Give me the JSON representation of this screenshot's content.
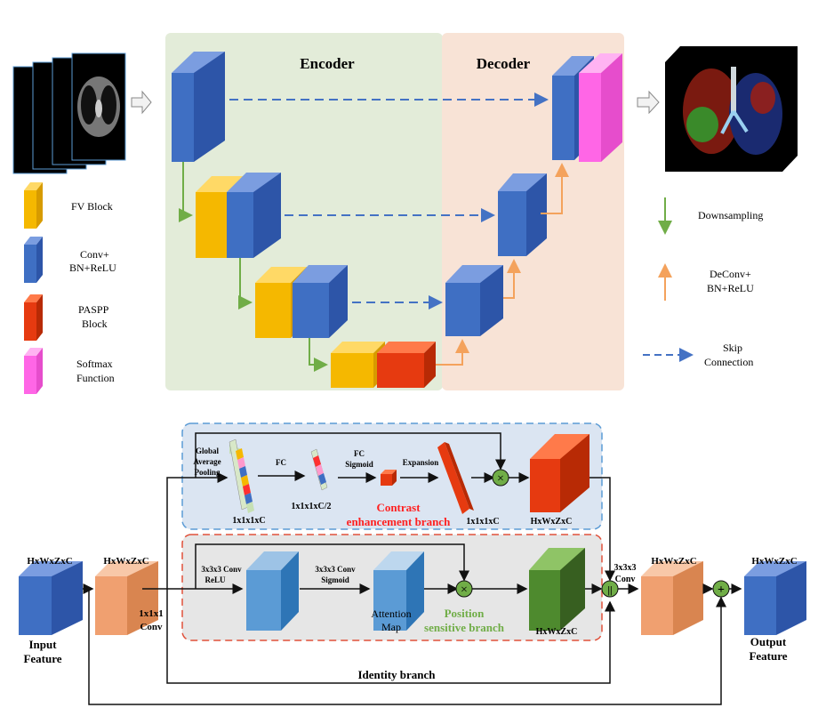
{
  "top": {
    "encoder_title": "Encoder",
    "decoder_title": "Decoder",
    "legend_left": [
      {
        "label": "FV Block",
        "color": "#f5b800"
      },
      {
        "label_lines": [
          "Conv+",
          "BN+ReLU"
        ],
        "color": "#3f6fc3"
      },
      {
        "label_lines": [
          "PASPP",
          "Block"
        ],
        "color": "#e63a10"
      },
      {
        "label_lines": [
          "Softmax",
          "Function"
        ],
        "color": "#ff66e6"
      }
    ],
    "legend_right": {
      "downsampling": "Downsampling",
      "deconv": [
        "DeConv+",
        "BN+ReLU"
      ],
      "skip": [
        "Skip",
        "Connection"
      ]
    }
  },
  "bottom": {
    "input_dim": "HxWxZxC",
    "input_label": [
      "Input",
      "Feature"
    ],
    "conv1_dim": "HxWxZxC",
    "conv1_label": [
      "1x1x1",
      "Conv"
    ],
    "contrast": {
      "gap_label": [
        "Global",
        "Average",
        "Pooling"
      ],
      "vec1_label": "1x1x1xC",
      "fc_label": "FC",
      "vec2_label": "1x1x1xC/2",
      "fc_sig_label": [
        "FC",
        "Sigmoid"
      ],
      "expansion_label": "Expansion",
      "vec3_label": "1x1x1xC",
      "branch_name": [
        "Contrast",
        "enhancement branch"
      ],
      "out_dim": "HxWxZxC"
    },
    "position": {
      "conv_relu": [
        "3x3x3 Conv",
        "ReLU"
      ],
      "conv_sig": [
        "3x3x3 Conv",
        "Sigmoid"
      ],
      "att_map": [
        "Attention",
        "Map"
      ],
      "branch_name": [
        "Position",
        "sensitive branch"
      ],
      "out_dim": "HxWxZxC"
    },
    "conv3": [
      "3x3x3",
      "Conv"
    ],
    "conv3_dim": "HxWxZxC",
    "output_dim": "HxWxZxC",
    "output_label": [
      "Output",
      "Feature"
    ],
    "identity": "Identity branch",
    "ops": {
      "multiply": "×",
      "concat": "||",
      "add": "+"
    }
  },
  "colors": {
    "encoder_bg": "#e3ecd9",
    "decoder_bg": "#f8e3d6",
    "contrast_bg": "#dbe5f2",
    "position_bg": "#e6e6e6",
    "blue": "#3f6fc3",
    "yellow": "#f5b800",
    "red": "#e63a10",
    "pink": "#ff66e6",
    "orange_light": "#f0a070",
    "green_dark": "#4e8a2e",
    "light_blue": "#5b9bd5",
    "down_arrow": "#70ad47",
    "up_arrow": "#f4a25c",
    "skip_arrow": "#4472c4"
  }
}
